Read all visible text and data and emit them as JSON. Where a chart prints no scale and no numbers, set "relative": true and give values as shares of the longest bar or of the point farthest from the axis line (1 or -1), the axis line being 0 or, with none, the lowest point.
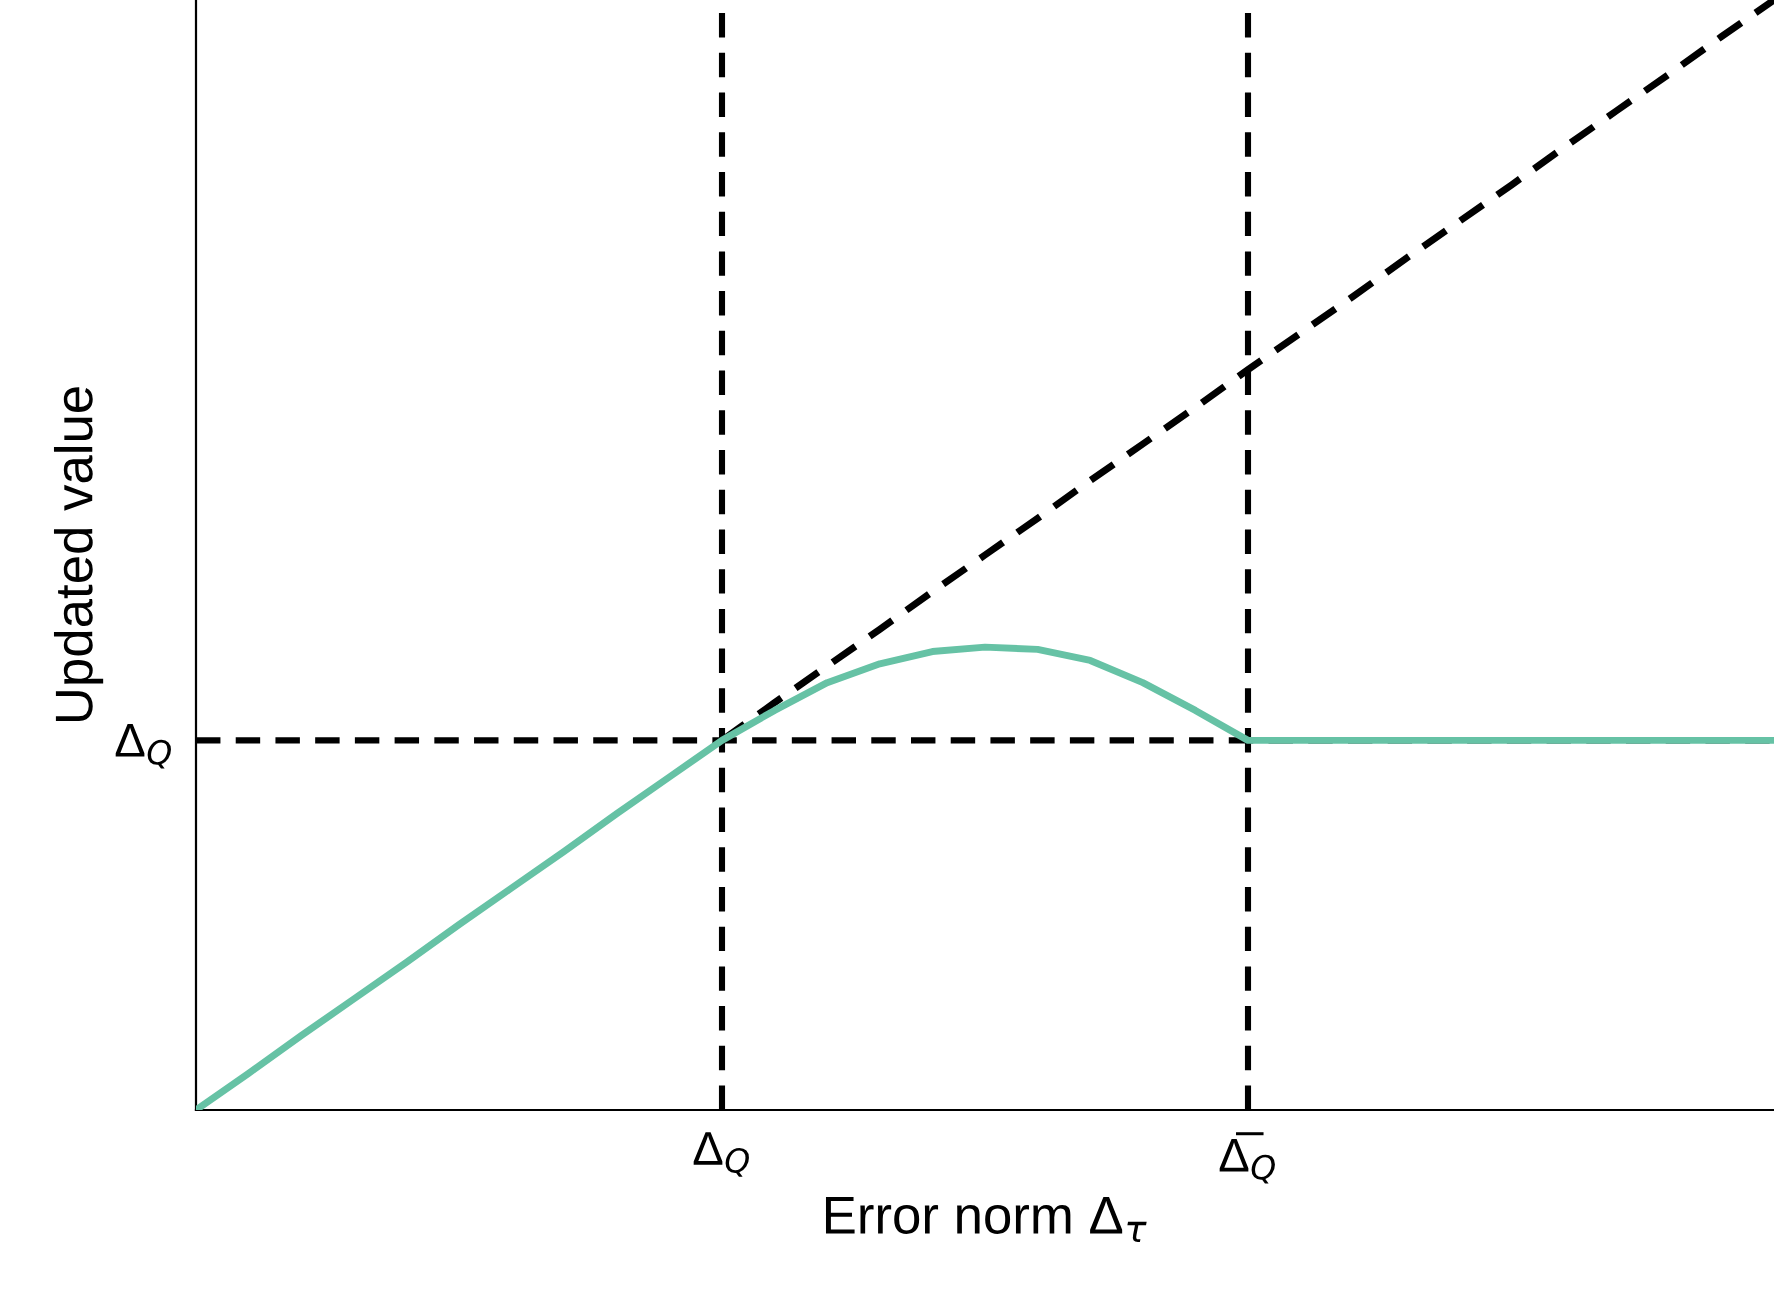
{
  "chart_data": {
    "type": "line",
    "xlabel": "Error norm Δ$_{τ}$",
    "ylabel": "Updated value",
    "relative": true,
    "categories": [
      null,
      null,
      null,
      null,
      null,
      null,
      null,
      null,
      null,
      null,
      "Δ$_{Q}$",
      null,
      null,
      null,
      null,
      null,
      null,
      null,
      null,
      null,
      "Δ̅$_{Q}$",
      null,
      null,
      null,
      null,
      null,
      null,
      null,
      null,
      null,
      null
    ],
    "series": [
      {
        "color": "#000000",
        "line_style": "dashed",
        "values": [
          null,
          null,
          null,
          null,
          null,
          null,
          null,
          null,
          null,
          null,
          0.333,
          0.367,
          0.4,
          0.433,
          0.467,
          0.5,
          0.533,
          0.567,
          0.6,
          0.633,
          0.667,
          0.7,
          0.733,
          0.767,
          0.8,
          0.833,
          0.867,
          0.9,
          0.933,
          0.967,
          1
        ]
      },
      {
        "color": "#66c2a5",
        "line_style": "solid",
        "values": [
          0,
          0.033,
          0.067,
          0.1,
          0.133,
          0.167,
          0.2,
          0.233,
          0.267,
          0.3,
          0.333,
          0.36,
          0.385,
          0.402,
          0.413,
          0.417,
          0.415,
          0.405,
          0.385,
          0.36,
          0.333,
          0.333,
          0.333,
          0.333,
          0.333,
          0.333,
          0.333,
          0.333,
          0.333,
          0.333,
          0.333
        ]
      }
    ],
    "ref_lines": [
      {
        "axis": "x",
        "value": "Δ$_{Q}$",
        "color": "#000000",
        "line_style": "dashed"
      },
      {
        "axis": "x",
        "value": "Δ̅$_{Q}$",
        "color": "#000000",
        "line_style": "dashed"
      },
      {
        "axis": "y",
        "value": 0.333,
        "label": "Δ$_{Q}$",
        "color": "#000000",
        "line_style": "dashed"
      }
    ],
    "grid": false,
    "legend": false
  }
}
